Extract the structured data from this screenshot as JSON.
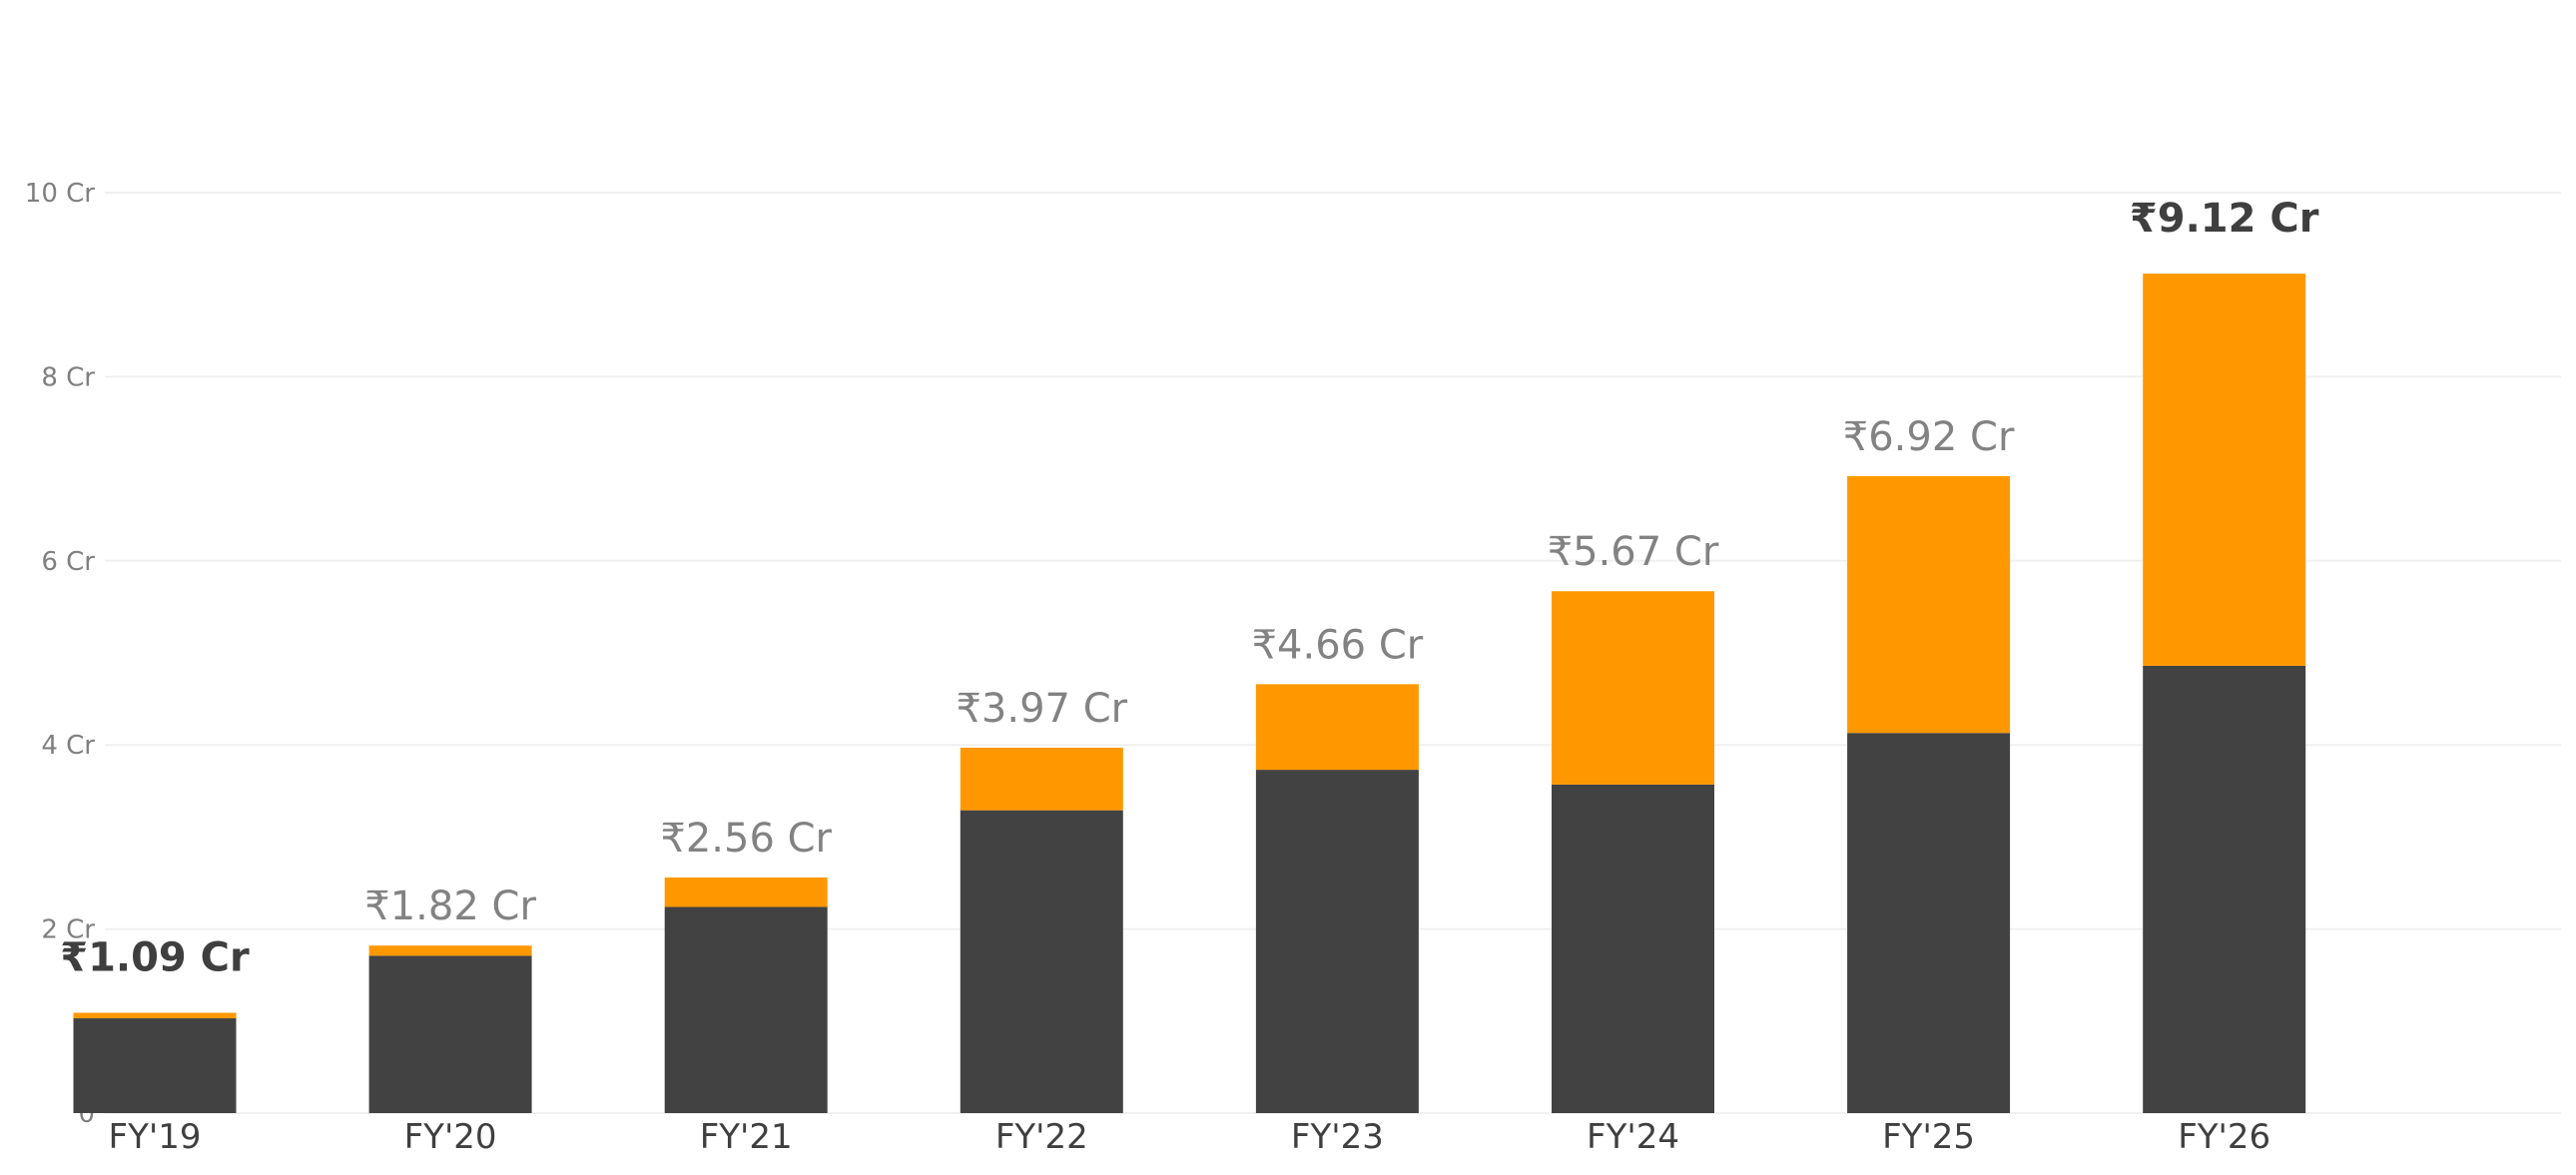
{
  "chart_data": {
    "type": "bar",
    "stacked": true,
    "title": "",
    "xlabel": "",
    "ylabel": "",
    "categories": [
      "FY'19",
      "FY'20",
      "FY'21",
      "FY'22",
      "FY'23",
      "FY'24",
      "FY'25",
      "FY'26"
    ],
    "series": [
      {
        "color": "#424242",
        "values": [
          1.03,
          1.71,
          2.24,
          3.29,
          3.73,
          3.57,
          4.13,
          4.86
        ]
      },
      {
        "color": "#ff9800",
        "values": [
          0.06,
          0.11,
          0.32,
          0.68,
          0.93,
          2.1,
          2.79,
          4.26
        ]
      }
    ],
    "totals": [
      1.09,
      1.82,
      2.56,
      3.97,
      4.66,
      5.67,
      6.92,
      9.12
    ],
    "total_labels": [
      "₹1.09 Cr",
      "₹1.82 Cr",
      "₹2.56 Cr",
      "₹3.97 Cr",
      "₹4.66 Cr",
      "₹5.67 Cr",
      "₹6.92 Cr",
      "₹9.12 Cr"
    ],
    "highlighted_labels": [
      0,
      7
    ],
    "ylim": [
      0,
      10
    ],
    "yticks": [
      0,
      2,
      4,
      6,
      8,
      10
    ],
    "ytick_labels": [
      "0",
      "2 Cr",
      "4 Cr",
      "6 Cr",
      "8 Cr",
      "10 Cr"
    ],
    "grid": true,
    "legend": "none",
    "colors": {
      "grid": "#f0f0f0",
      "tick_text": "#7f7f7f",
      "category_text": "#3f3f3f",
      "label_text": "#828282",
      "highlight_text": "#3f3f3f"
    }
  }
}
